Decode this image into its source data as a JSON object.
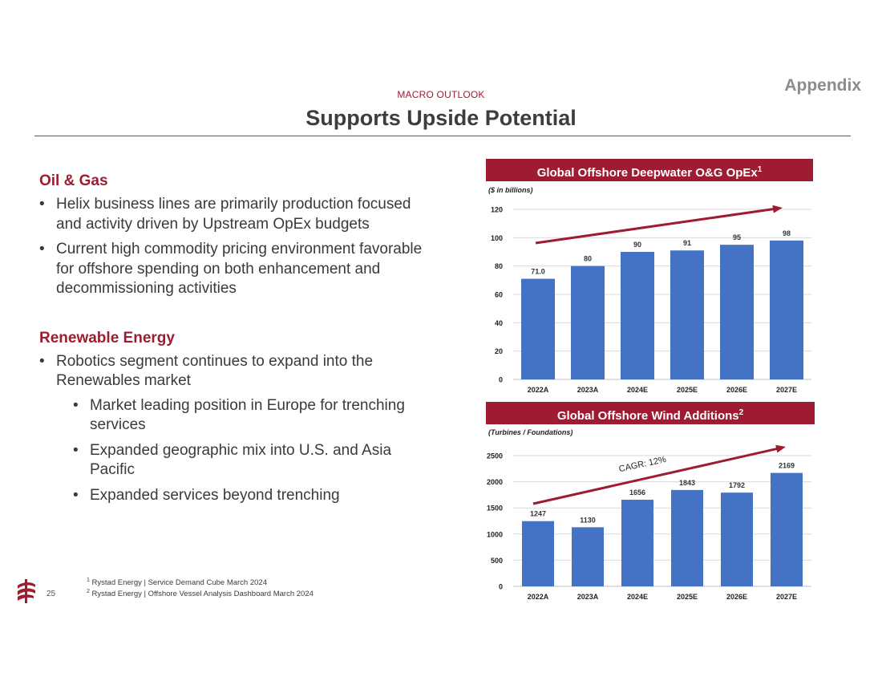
{
  "header": {
    "appendix": "Appendix",
    "kicker": "MACRO OUTLOOK",
    "title": "Supports Upside Potential"
  },
  "left": {
    "oil_gas": {
      "heading": "Oil & Gas",
      "bullets": [
        "Helix business lines are primarily production focused and activity driven by Upstream OpEx budgets",
        "Current high commodity pricing environment favorable for offshore spending on both enhancement and decommissioning activities"
      ]
    },
    "renewables": {
      "heading": "Renewable Energy",
      "bullet": "Robotics segment continues to expand into the Renewables market",
      "sub_bullets": [
        "Market leading position in Europe for trenching services",
        "Expanded geographic mix into U.S. and Asia Pacific",
        "Expanded services beyond trenching"
      ]
    }
  },
  "footer": {
    "page_number": "25",
    "footnote_1_mark": "1",
    "footnote_1": "Rystad Energy | Service Demand Cube March 2024",
    "footnote_2_mark": "2",
    "footnote_2": "Rystad Energy | Offshore Vessel Analysis Dashboard March 2024"
  },
  "colors": {
    "brand": "#9e1c32",
    "bar": "#4472c4",
    "grid": "#d9d9d9"
  },
  "chart_data": [
    {
      "type": "bar",
      "title": "Global Offshore Deepwater O&G OpEx",
      "title_footnote": "1",
      "units_label": "($ in billions)",
      "categories": [
        "2022A",
        "2023A",
        "2024E",
        "2025E",
        "2026E",
        "2027E"
      ],
      "values": [
        71.0,
        80,
        90,
        91,
        95,
        98
      ],
      "value_labels": [
        "71.0",
        "80",
        "90",
        "91",
        "95",
        "98"
      ],
      "ylim": [
        0,
        120
      ],
      "yticks": [
        0,
        20,
        40,
        60,
        80,
        100,
        120
      ],
      "ytick_labels": [
        "0",
        "20",
        "40",
        "60",
        "80",
        "100",
        "120"
      ],
      "grid": true,
      "trend_arrow": true,
      "annotation": ""
    },
    {
      "type": "bar",
      "title": "Global Offshore Wind Additions",
      "title_footnote": "2",
      "units_label": "(Turbines / Foundations)",
      "categories": [
        "2022A",
        "2023A",
        "2024E",
        "2025E",
        "2026E",
        "2027E"
      ],
      "values": [
        1247,
        1130,
        1656,
        1843,
        1792,
        2169
      ],
      "value_labels": [
        "1247",
        "1130",
        "1656",
        "1843",
        "1792",
        "2169"
      ],
      "ylim": [
        0,
        2500
      ],
      "yticks": [
        0,
        500,
        1000,
        1500,
        2000,
        2500
      ],
      "ytick_labels": [
        "0",
        "500",
        "1000",
        "1500",
        "2000",
        "2500"
      ],
      "grid": true,
      "trend_arrow": true,
      "annotation": "CAGR: 12%"
    }
  ]
}
